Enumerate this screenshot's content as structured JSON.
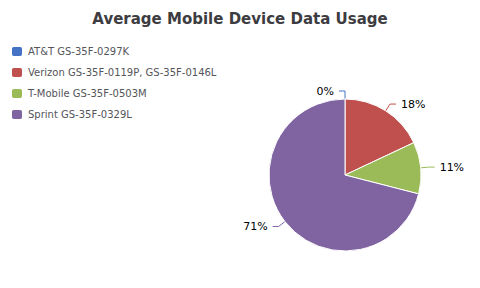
{
  "chart_data": {
    "type": "pie",
    "title": "Average Mobile Device Data Usage",
    "categories": [
      "AT&T GS-35F-0297K",
      "Verizon GS-35F-0119P, GS-35F-0146L",
      "T-Mobile GS-35F-0503M",
      "Sprint GS-35F-0329L"
    ],
    "values": [
      0,
      18,
      11,
      71
    ],
    "value_labels": [
      "0%",
      "18%",
      "11%",
      "71%"
    ],
    "colors": [
      "#4472C4",
      "#C0504D",
      "#9BBB59",
      "#8064A2"
    ],
    "data_labels": true,
    "legend": "upper left"
  }
}
